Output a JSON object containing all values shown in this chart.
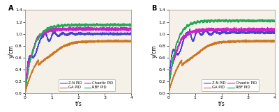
{
  "panel_A_label": "A",
  "panel_B_label": "B",
  "xlabel": "t/s",
  "ylabel": "y/cm",
  "xlim": [
    0,
    4
  ],
  "ylim": [
    0.0,
    1.4
  ],
  "yticks": [
    0.0,
    0.2,
    0.4,
    0.6,
    0.8,
    1.0,
    1.2,
    1.4
  ],
  "xticks": [
    0,
    1,
    2,
    3,
    4
  ],
  "legend_entries_A": [
    "Z-N PID",
    "GA PID",
    "Chaotic PID",
    "RBF PID"
  ],
  "legend_entries_B": [
    "Z-N PID",
    "GA PID",
    "Chaotic PID",
    "RBF PID"
  ],
  "colors_A": {
    "ZN": "#4444cc",
    "GA": "#cc7722",
    "Chaotic": "#cc22cc",
    "RBF": "#22aa55"
  },
  "colors_B": {
    "ZN": "#4444cc",
    "GA": "#cc7722",
    "Chaotic": "#cc22cc",
    "RBF": "#22aa55"
  },
  "bg_color": "#f5f0e8",
  "fig_bg": "#ffffff",
  "noise_amplitude": 0.008,
  "seed_A": 10,
  "seed_B": 20
}
